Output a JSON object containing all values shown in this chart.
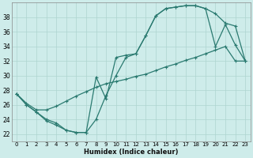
{
  "xlabel": "Humidex (Indice chaleur)",
  "bg_color": "#ceecea",
  "grid_color": "#aed4d0",
  "line_color": "#2a7a70",
  "x_min": -0.5,
  "x_max": 23.5,
  "y_min": 21,
  "y_max": 40,
  "yticks": [
    22,
    24,
    26,
    28,
    30,
    32,
    34,
    36,
    38
  ],
  "xticks": [
    0,
    1,
    2,
    3,
    4,
    5,
    6,
    7,
    8,
    9,
    10,
    11,
    12,
    13,
    14,
    15,
    16,
    17,
    18,
    19,
    20,
    21,
    22,
    23
  ],
  "line1_x": [
    0,
    1,
    2,
    3,
    4,
    5,
    6,
    7,
    8,
    9,
    10,
    11,
    12,
    13,
    14,
    15,
    16,
    17,
    18,
    19,
    20,
    21,
    22,
    23
  ],
  "line1_y": [
    27.5,
    26.0,
    25.0,
    23.8,
    23.2,
    22.5,
    22.2,
    22.2,
    24.0,
    27.3,
    30.0,
    32.5,
    33.0,
    35.5,
    38.2,
    39.2,
    39.4,
    39.6,
    39.6,
    39.2,
    34.0,
    37.0,
    34.2,
    32.0
  ],
  "line2_x": [
    0,
    1,
    2,
    3,
    4,
    5,
    6,
    7,
    8,
    9,
    10,
    11,
    12,
    13,
    14,
    15,
    16,
    17,
    18,
    19,
    20,
    21,
    22,
    23
  ],
  "line2_y": [
    27.5,
    26.0,
    25.0,
    24.0,
    23.5,
    22.5,
    22.2,
    22.2,
    29.8,
    26.8,
    32.5,
    32.8,
    33.0,
    35.5,
    38.2,
    39.2,
    39.4,
    39.6,
    39.6,
    39.2,
    38.5,
    37.2,
    36.8,
    32.0
  ],
  "line3_x": [
    0,
    1,
    2,
    3,
    4,
    5,
    6,
    7,
    8,
    9,
    10,
    11,
    12,
    13,
    14,
    15,
    16,
    17,
    18,
    19,
    20,
    21,
    22,
    23
  ],
  "line3_y": [
    27.5,
    26.2,
    25.3,
    25.3,
    25.8,
    26.5,
    27.2,
    27.8,
    28.4,
    28.9,
    29.2,
    29.5,
    29.9,
    30.2,
    30.7,
    31.2,
    31.6,
    32.1,
    32.5,
    33.0,
    33.5,
    34.0,
    32.0,
    32.0
  ]
}
